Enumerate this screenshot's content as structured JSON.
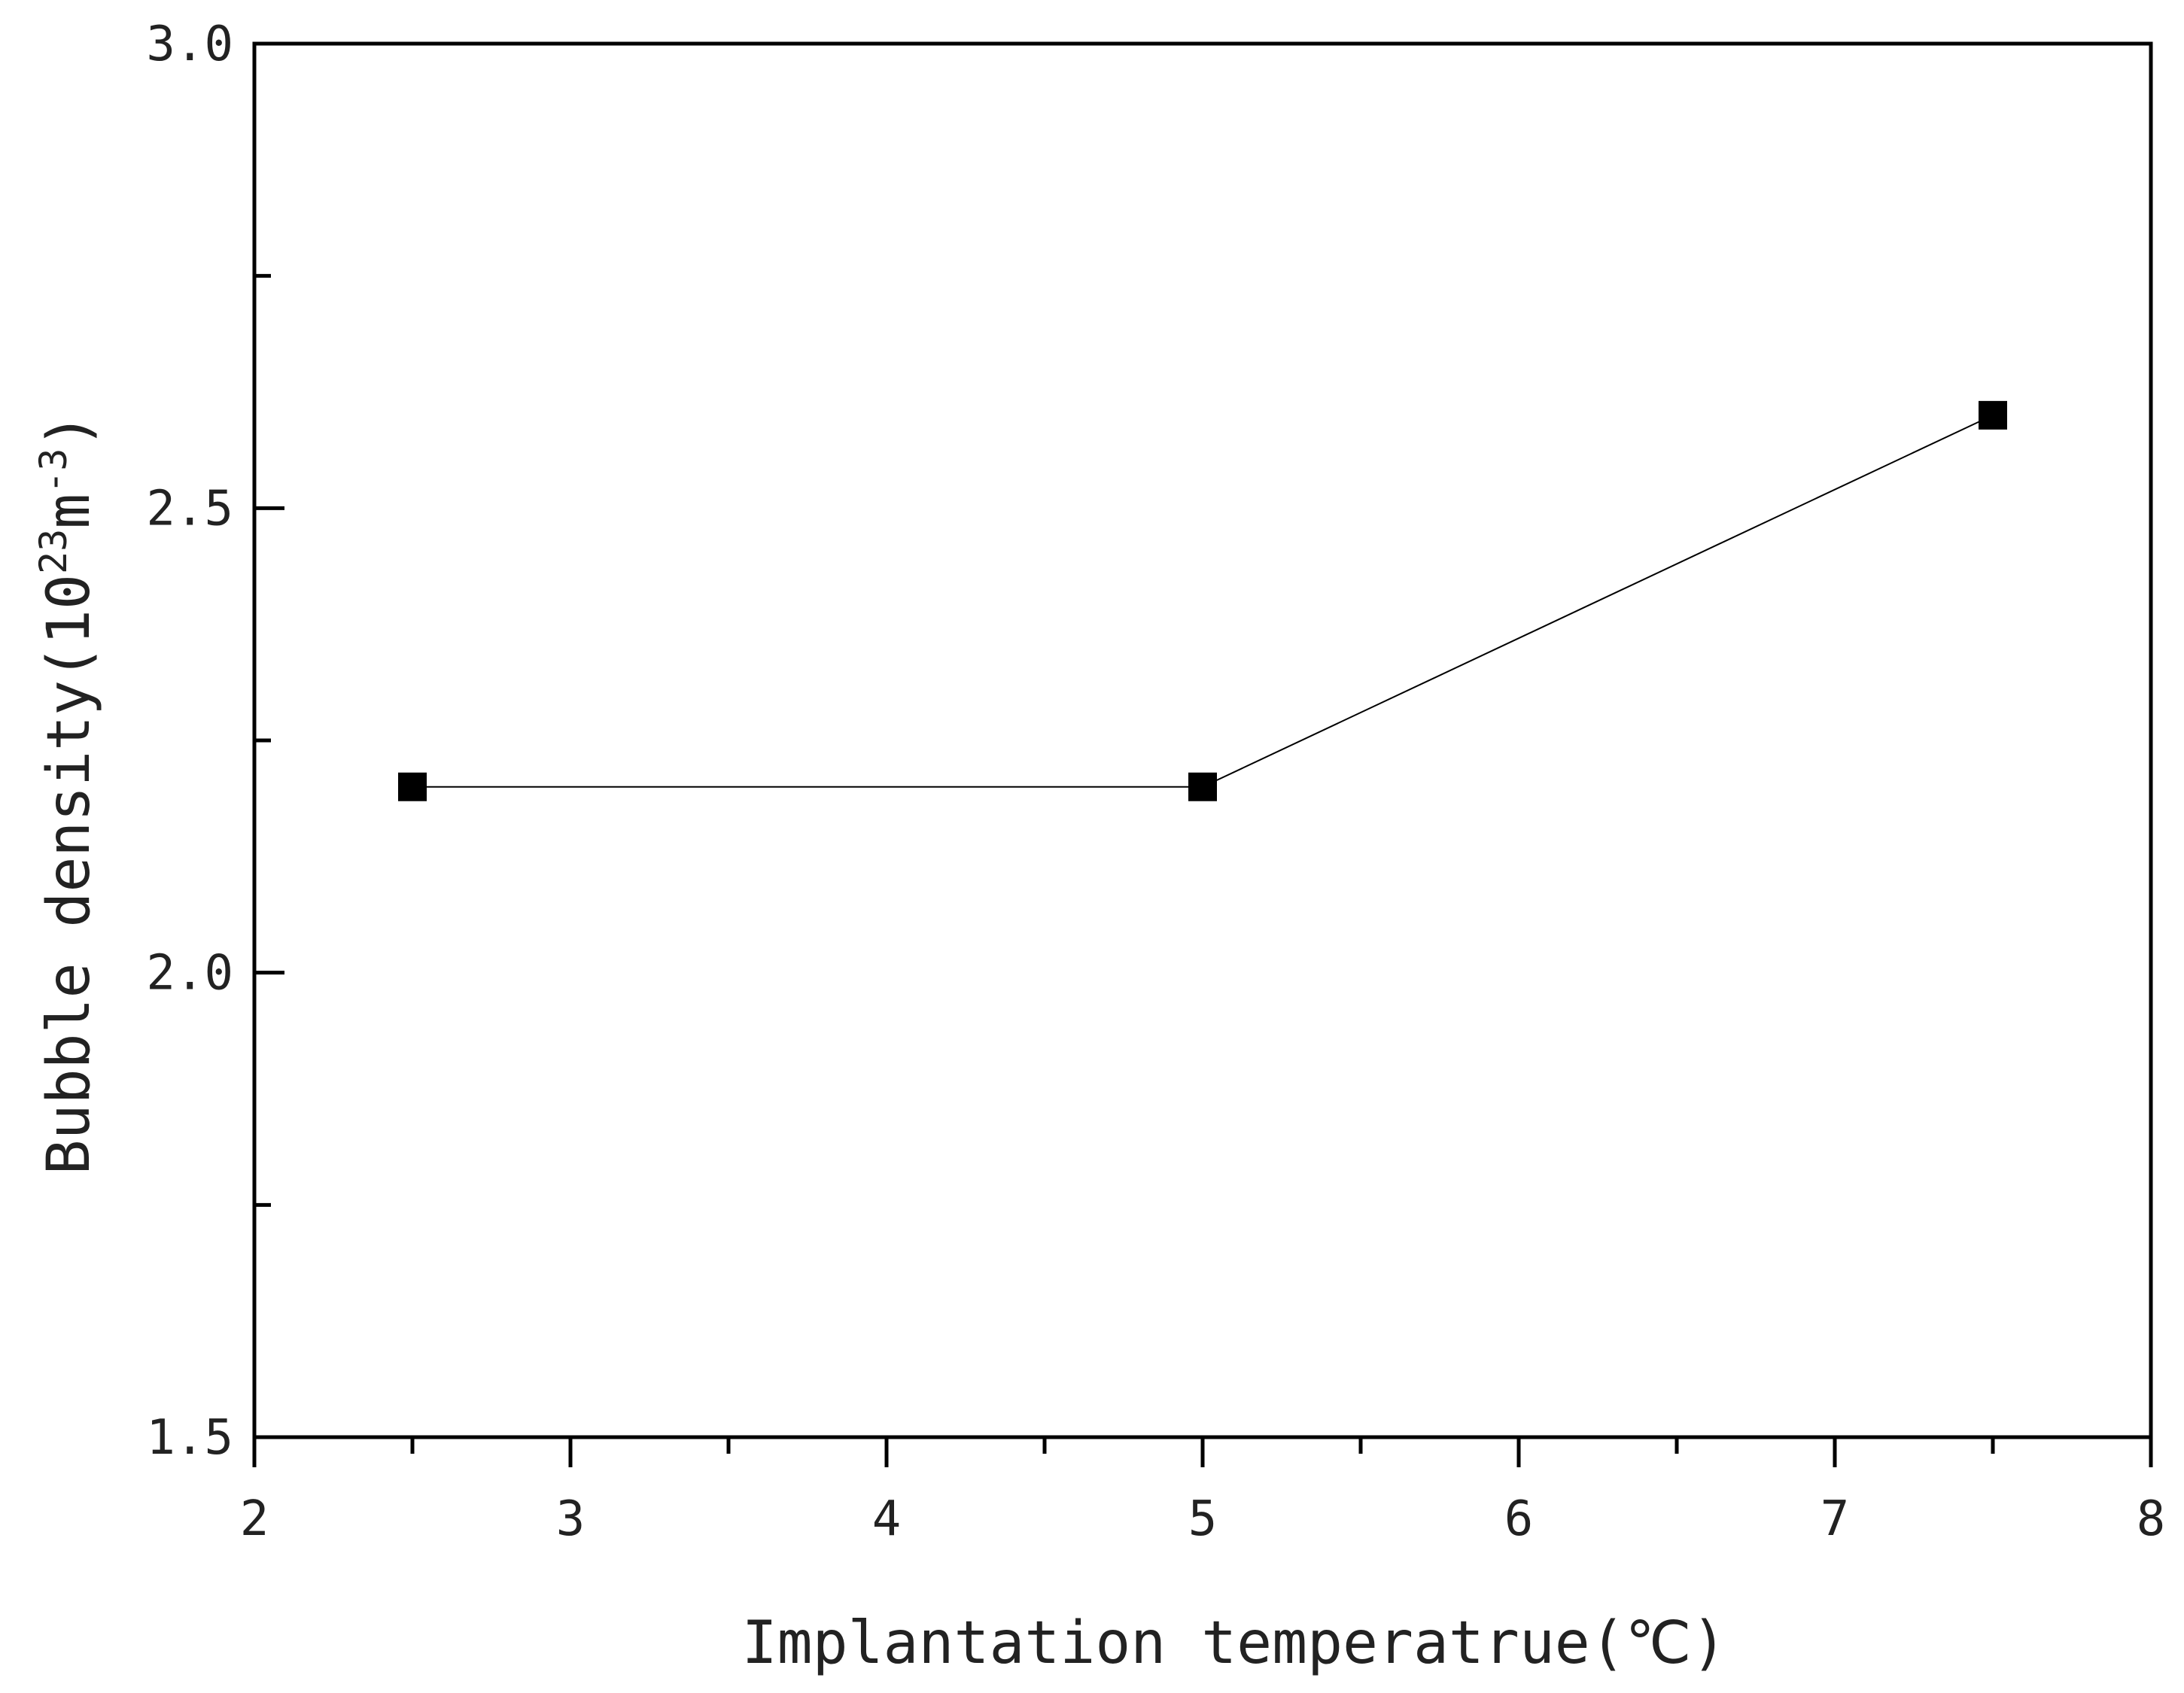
{
  "chart_data": {
    "type": "line",
    "title": "",
    "xlabel": "Implantation temperatrue(℃)",
    "ylabel": {
      "prefix": "Bubble density(10",
      "exp1": "23",
      "mid": "m",
      "exp2": "-3",
      "suffix": ")"
    },
    "xlim": [
      2,
      8
    ],
    "ylim": [
      1.5,
      3.0
    ],
    "x_ticks": [
      2,
      3,
      4,
      5,
      6,
      7,
      8
    ],
    "x_tick_labels": [
      "2",
      "3",
      "4",
      "5",
      "6",
      "7",
      "8"
    ],
    "x_minor_ticks": [
      2.5,
      3.5,
      4.5,
      5.5,
      6.5,
      7.5
    ],
    "y_ticks": [
      1.5,
      2.0,
      2.5,
      3.0
    ],
    "y_tick_labels": [
      "1.5",
      "2.0",
      "2.5",
      "3.0"
    ],
    "y_minor_ticks": [
      1.75,
      2.25,
      2.75
    ],
    "grid": false,
    "series": [
      {
        "name": "Bubble density",
        "marker": "square",
        "color": "#000000",
        "line_color": "#000000",
        "x": [
          2.5,
          5.0,
          7.5
        ],
        "y": [
          2.2,
          2.2,
          2.6
        ]
      }
    ]
  }
}
